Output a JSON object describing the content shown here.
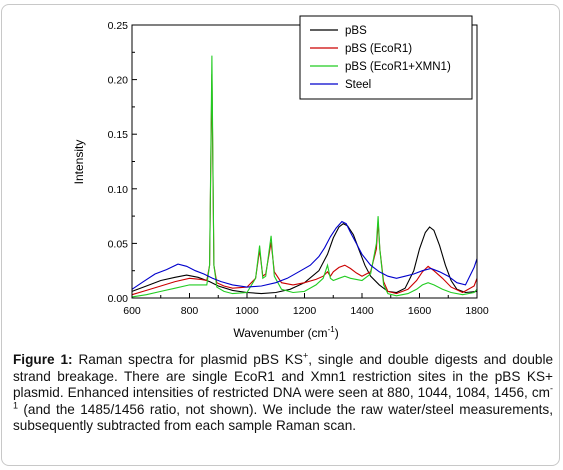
{
  "chart_data": {
    "type": "line",
    "title": "",
    "xlabel": "Wavenumber (cm",
    "xlabel_sup": "-1",
    "xlabel_end": ")",
    "ylabel": "Intensity",
    "xlim": [
      600,
      1800
    ],
    "ylim": [
      0,
      0.25
    ],
    "x_ticks": [
      "600",
      "800",
      "1000",
      "1200",
      "1400",
      "1600",
      "1800"
    ],
    "y_ticks": [
      "0.00",
      "0.05",
      "0.10",
      "0.15",
      "0.20",
      "0.25"
    ],
    "grid": false,
    "legend_position": "top-right",
    "series": [
      {
        "name": "pBS",
        "color": "#000000",
        "points": [
          [
            600,
            0.006
          ],
          [
            650,
            0.011
          ],
          [
            700,
            0.016
          ],
          [
            750,
            0.019
          ],
          [
            790,
            0.021
          ],
          [
            830,
            0.019
          ],
          [
            870,
            0.015
          ],
          [
            900,
            0.011
          ],
          [
            950,
            0.007
          ],
          [
            1000,
            0.005
          ],
          [
            1050,
            0.004
          ],
          [
            1100,
            0.005
          ],
          [
            1150,
            0.008
          ],
          [
            1200,
            0.014
          ],
          [
            1250,
            0.025
          ],
          [
            1280,
            0.04
          ],
          [
            1300,
            0.055
          ],
          [
            1320,
            0.065
          ],
          [
            1335,
            0.068
          ],
          [
            1350,
            0.066
          ],
          [
            1370,
            0.058
          ],
          [
            1390,
            0.044
          ],
          [
            1410,
            0.03
          ],
          [
            1430,
            0.02
          ],
          [
            1460,
            0.012
          ],
          [
            1490,
            0.006
          ],
          [
            1520,
            0.005
          ],
          [
            1550,
            0.009
          ],
          [
            1580,
            0.025
          ],
          [
            1600,
            0.045
          ],
          [
            1620,
            0.06
          ],
          [
            1635,
            0.065
          ],
          [
            1650,
            0.062
          ],
          [
            1670,
            0.048
          ],
          [
            1690,
            0.03
          ],
          [
            1710,
            0.016
          ],
          [
            1730,
            0.008
          ],
          [
            1760,
            0.005
          ],
          [
            1800,
            0.006
          ]
        ]
      },
      {
        "name": "pBS (EcoR1)",
        "color": "#cc0000",
        "points": [
          [
            600,
            0.003
          ],
          [
            650,
            0.007
          ],
          [
            700,
            0.011
          ],
          [
            750,
            0.015
          ],
          [
            800,
            0.018
          ],
          [
            840,
            0.017
          ],
          [
            860,
            0.016
          ],
          [
            870,
            0.03
          ],
          [
            878,
            0.205
          ],
          [
            885,
            0.03
          ],
          [
            895,
            0.014
          ],
          [
            920,
            0.011
          ],
          [
            950,
            0.009
          ],
          [
            1000,
            0.01
          ],
          [
            1030,
            0.018
          ],
          [
            1044,
            0.044
          ],
          [
            1055,
            0.02
          ],
          [
            1065,
            0.022
          ],
          [
            1084,
            0.051
          ],
          [
            1095,
            0.024
          ],
          [
            1120,
            0.014
          ],
          [
            1160,
            0.012
          ],
          [
            1200,
            0.014
          ],
          [
            1240,
            0.017
          ],
          [
            1265,
            0.02
          ],
          [
            1280,
            0.024
          ],
          [
            1290,
            0.02
          ],
          [
            1300,
            0.024
          ],
          [
            1320,
            0.028
          ],
          [
            1340,
            0.03
          ],
          [
            1360,
            0.027
          ],
          [
            1380,
            0.023
          ],
          [
            1400,
            0.02
          ],
          [
            1430,
            0.024
          ],
          [
            1450,
            0.045
          ],
          [
            1456,
            0.07
          ],
          [
            1462,
            0.045
          ],
          [
            1475,
            0.015
          ],
          [
            1490,
            0.006
          ],
          [
            1520,
            0.004
          ],
          [
            1560,
            0.008
          ],
          [
            1590,
            0.016
          ],
          [
            1610,
            0.024
          ],
          [
            1630,
            0.029
          ],
          [
            1650,
            0.025
          ],
          [
            1680,
            0.018
          ],
          [
            1710,
            0.01
          ],
          [
            1750,
            0.005
          ],
          [
            1790,
            0.011
          ],
          [
            1800,
            0.018
          ]
        ]
      },
      {
        "name": "pBS (EcoR1+XMN1)",
        "color": "#22cc22",
        "points": [
          [
            600,
            0.001
          ],
          [
            650,
            0.003
          ],
          [
            700,
            0.006
          ],
          [
            750,
            0.009
          ],
          [
            800,
            0.012
          ],
          [
            840,
            0.012
          ],
          [
            860,
            0.012
          ],
          [
            870,
            0.03
          ],
          [
            878,
            0.222
          ],
          [
            885,
            0.03
          ],
          [
            895,
            0.01
          ],
          [
            920,
            0.006
          ],
          [
            950,
            0.004
          ],
          [
            1000,
            0.005
          ],
          [
            1030,
            0.018
          ],
          [
            1044,
            0.048
          ],
          [
            1055,
            0.018
          ],
          [
            1065,
            0.02
          ],
          [
            1084,
            0.057
          ],
          [
            1095,
            0.02
          ],
          [
            1120,
            0.008
          ],
          [
            1160,
            0.005
          ],
          [
            1200,
            0.006
          ],
          [
            1240,
            0.012
          ],
          [
            1265,
            0.018
          ],
          [
            1280,
            0.03
          ],
          [
            1290,
            0.018
          ],
          [
            1300,
            0.016
          ],
          [
            1320,
            0.018
          ],
          [
            1340,
            0.02
          ],
          [
            1360,
            0.018
          ],
          [
            1380,
            0.017
          ],
          [
            1400,
            0.016
          ],
          [
            1430,
            0.022
          ],
          [
            1450,
            0.05
          ],
          [
            1456,
            0.075
          ],
          [
            1462,
            0.045
          ],
          [
            1475,
            0.012
          ],
          [
            1490,
            0.004
          ],
          [
            1520,
            0.002
          ],
          [
            1560,
            0.004
          ],
          [
            1590,
            0.008
          ],
          [
            1610,
            0.012
          ],
          [
            1630,
            0.014
          ],
          [
            1650,
            0.012
          ],
          [
            1680,
            0.008
          ],
          [
            1710,
            0.005
          ],
          [
            1750,
            0.003
          ],
          [
            1790,
            0.005
          ],
          [
            1800,
            0.008
          ]
        ]
      },
      {
        "name": "Steel",
        "color": "#0000cc",
        "points": [
          [
            600,
            0.008
          ],
          [
            640,
            0.015
          ],
          [
            680,
            0.022
          ],
          [
            720,
            0.026
          ],
          [
            760,
            0.031
          ],
          [
            790,
            0.029
          ],
          [
            820,
            0.025
          ],
          [
            850,
            0.022
          ],
          [
            880,
            0.018
          ],
          [
            910,
            0.015
          ],
          [
            950,
            0.012
          ],
          [
            1000,
            0.01
          ],
          [
            1050,
            0.011
          ],
          [
            1100,
            0.014
          ],
          [
            1140,
            0.018
          ],
          [
            1180,
            0.024
          ],
          [
            1220,
            0.03
          ],
          [
            1250,
            0.038
          ],
          [
            1270,
            0.046
          ],
          [
            1290,
            0.056
          ],
          [
            1310,
            0.064
          ],
          [
            1330,
            0.07
          ],
          [
            1345,
            0.068
          ],
          [
            1360,
            0.06
          ],
          [
            1380,
            0.05
          ],
          [
            1400,
            0.04
          ],
          [
            1430,
            0.03
          ],
          [
            1460,
            0.024
          ],
          [
            1490,
            0.02
          ],
          [
            1520,
            0.018
          ],
          [
            1550,
            0.02
          ],
          [
            1580,
            0.022
          ],
          [
            1610,
            0.025
          ],
          [
            1640,
            0.027
          ],
          [
            1670,
            0.024
          ],
          [
            1700,
            0.02
          ],
          [
            1730,
            0.014
          ],
          [
            1760,
            0.012
          ],
          [
            1790,
            0.028
          ],
          [
            1800,
            0.036
          ]
        ]
      }
    ]
  },
  "caption": {
    "label": "Figure 1:",
    "part1": " Raman spectra for plasmid pBS KS",
    "sup1": "+",
    "part2": ", single and double digests and double strand breakage.  There are single EcoR1 and Xmn1 restriction sites in the pBS KS+ plasmid.   Enhanced intensities of restricted DNA were seen at 880, 1044, 1084, 1456, cm",
    "sup2": "-1",
    "part3": " (and the 1485/1456 ratio, not shown).  We include the raw water/steel measurements, subsequently subtracted from each sample Raman scan."
  }
}
